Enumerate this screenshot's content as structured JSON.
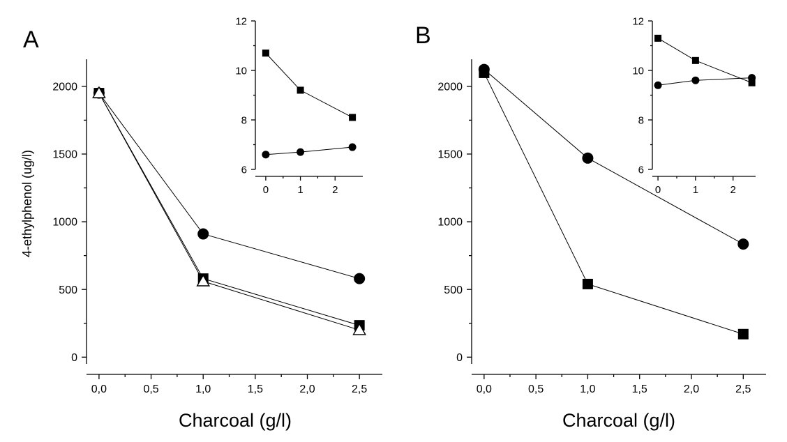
{
  "figure": {
    "shared_ylabel": "4-ethylphenol (ug/l)"
  },
  "chart_data": [
    {
      "id": "A",
      "type": "line",
      "panel_label": "A",
      "title": "",
      "xlabel": "Charcoal (g/l)",
      "ylabel": "4-ethylphenol (ug/l)",
      "xlim": [
        -0.12,
        2.72
      ],
      "ylim": [
        -50,
        2200
      ],
      "xticks": [
        0,
        0.5,
        1.0,
        1.5,
        2.0,
        2.5
      ],
      "xtick_labels": [
        "0,0",
        "0,5",
        "1,0",
        "1,5",
        "2,0",
        "2,5"
      ],
      "yticks": [
        0,
        500,
        1000,
        1500,
        2000
      ],
      "ytick_labels": [
        "0",
        "500",
        "1000",
        "1500",
        "2000"
      ],
      "series": [
        {
          "name": "filled circles",
          "marker": "circle",
          "x": [
            0,
            1,
            2.5
          ],
          "y": [
            1950,
            910,
            580
          ]
        },
        {
          "name": "filled squares",
          "marker": "square",
          "x": [
            0,
            1,
            2.5
          ],
          "y": [
            1950,
            580,
            235
          ]
        },
        {
          "name": "open triangles",
          "marker": "open-triangle",
          "x": [
            0,
            1,
            2.5
          ],
          "y": [
            1950,
            560,
            200
          ]
        }
      ],
      "inset": {
        "xlim": [
          -0.3,
          2.8
        ],
        "ylim": [
          6,
          12
        ],
        "xticks": [
          0,
          1,
          2
        ],
        "xtick_labels": [
          "0",
          "1",
          "2"
        ],
        "yticks": [
          6,
          8,
          10,
          12
        ],
        "ytick_labels": [
          "6",
          "8",
          "10",
          "12"
        ],
        "series": [
          {
            "name": "inset squares",
            "marker": "square",
            "x": [
              0,
              1,
              2.5
            ],
            "y": [
              10.7,
              9.2,
              8.1
            ]
          },
          {
            "name": "inset circles",
            "marker": "circle",
            "x": [
              0,
              1,
              2.5
            ],
            "y": [
              6.6,
              6.7,
              6.9
            ]
          }
        ]
      }
    },
    {
      "id": "B",
      "type": "line",
      "panel_label": "B",
      "title": "",
      "xlabel": "Charcoal (g/l)",
      "ylabel": "",
      "xlim": [
        -0.12,
        2.72
      ],
      "ylim": [
        -50,
        2200
      ],
      "xticks": [
        0,
        0.5,
        1.0,
        1.5,
        2.0,
        2.5
      ],
      "xtick_labels": [
        "0,0",
        "0,5",
        "1,0",
        "1,5",
        "2,0",
        "2,5"
      ],
      "yticks": [
        0,
        500,
        1000,
        1500,
        2000
      ],
      "ytick_labels": [
        "0",
        "500",
        "1000",
        "1500",
        "2000"
      ],
      "series": [
        {
          "name": "filled circles",
          "marker": "circle",
          "x": [
            0,
            1,
            2.5
          ],
          "y": [
            2125,
            1470,
            835
          ]
        },
        {
          "name": "filled squares",
          "marker": "square",
          "x": [
            0,
            1,
            2.5
          ],
          "y": [
            2100,
            540,
            170
          ]
        }
      ],
      "inset": {
        "xlim": [
          -0.15,
          2.6
        ],
        "ylim": [
          6,
          12
        ],
        "xticks": [
          0,
          1,
          2
        ],
        "xtick_labels": [
          "0",
          "1",
          "2"
        ],
        "yticks": [
          6,
          8,
          10,
          12
        ],
        "ytick_labels": [
          "6",
          "8",
          "10",
          "12"
        ],
        "series": [
          {
            "name": "inset squares",
            "marker": "square",
            "x": [
              0,
              1,
              2.5
            ],
            "y": [
              11.3,
              10.4,
              9.5
            ]
          },
          {
            "name": "inset circles",
            "marker": "circle",
            "x": [
              0,
              1,
              2.5
            ],
            "y": [
              9.4,
              9.6,
              9.7
            ]
          }
        ]
      }
    }
  ]
}
